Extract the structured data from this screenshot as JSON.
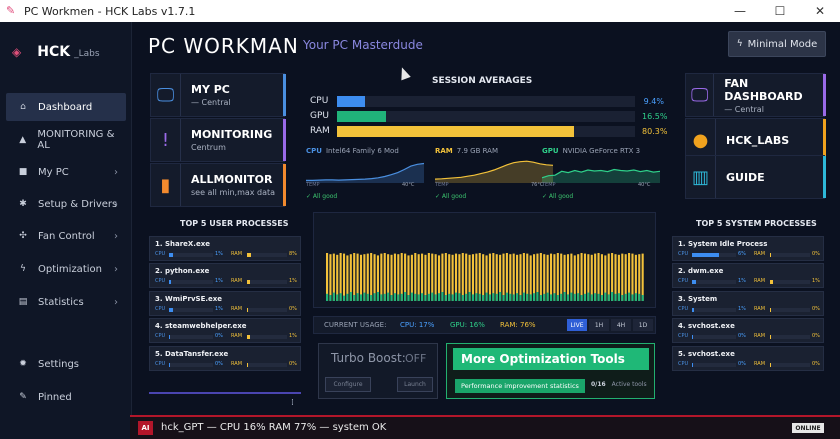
{
  "window": {
    "title": "PC Workmen - HCK Labs v1.7.1",
    "minimize": "—",
    "maximize": "☐",
    "close": "✕"
  },
  "sidebar": {
    "logo_main": "HCK",
    "logo_sub": "_Labs",
    "items": [
      {
        "label": "Dashboard",
        "icon": "home-icon",
        "glyph": "⌂",
        "active": true
      },
      {
        "label": "MONITORING & AL",
        "icon": "warning-icon",
        "glyph": "▲"
      },
      {
        "label": "My PC",
        "icon": "pc-icon",
        "glyph": "■",
        "chevron": "›"
      },
      {
        "label": "Setup & Drivers",
        "icon": "gear-icon",
        "glyph": "✱",
        "chevron": "›"
      },
      {
        "label": "Fan Control",
        "icon": "fan-icon",
        "glyph": "✣",
        "chevron": "›"
      },
      {
        "label": "Optimization",
        "icon": "bolt-icon",
        "glyph": "ϟ",
        "chevron": "›"
      },
      {
        "label": "Statistics",
        "icon": "stats-icon",
        "glyph": "▤",
        "chevron": "›"
      },
      {
        "label": "Settings",
        "icon": "settings-icon",
        "glyph": "✹"
      },
      {
        "label": "Pinned",
        "icon": "pin-icon",
        "glyph": "✎"
      }
    ]
  },
  "header": {
    "brand": "PC WORKMAN",
    "tagline": "Your PC Masterdude",
    "minimal_mode": "Minimal Mode"
  },
  "tiles_left": [
    {
      "title": "MY PC",
      "sub": "— Central",
      "icon": "monitor-icon",
      "glyph": "🖵",
      "color": "#4a8fe0"
    },
    {
      "title": "MONITORING",
      "sub": "Centrum",
      "icon": "alert-icon",
      "glyph": "!",
      "color": "#9a6ae8"
    },
    {
      "title": "ALLMONITOR",
      "sub": "see all min,max data",
      "icon": "bars-icon",
      "glyph": "▮",
      "color": "#f28a2e"
    }
  ],
  "tiles_right": [
    {
      "title": "FAN DASHBOARD",
      "sub": "— Central",
      "icon": "monitor-icon",
      "glyph": "🖵",
      "color": "#9a6ae8"
    },
    {
      "title": "HCK_LABS",
      "sub": "",
      "icon": "circle-icon",
      "glyph": "●",
      "color": "#f0a21e"
    },
    {
      "title": "GUIDE",
      "sub": "",
      "icon": "book-icon",
      "glyph": "▥",
      "color": "#2eb8d8"
    }
  ],
  "session": {
    "title": "SESSION AVERAGES",
    "rows": [
      {
        "label": "CPU",
        "value": 9.4,
        "text": "9.4%",
        "color": "#3d8df0",
        "text_color": "#4aa0ff"
      },
      {
        "label": "GPU",
        "value": 16.5,
        "text": "16.5%",
        "color": "#20b37a",
        "text_color": "#2fd08a"
      },
      {
        "label": "RAM",
        "value": 80.3,
        "text": "80.3%",
        "color": "#f3c23a",
        "text_color": "#f3c23a"
      }
    ]
  },
  "mini_charts": [
    {
      "label": "CPU",
      "model": "Intel64 Family 6 Mod",
      "color": "#4a8fe0",
      "temp_label": "TEMP",
      "temp": "40°C",
      "status": "✓ All good",
      "values": [
        10,
        10,
        11,
        12,
        12,
        11,
        12,
        13,
        14,
        15,
        17,
        20,
        25,
        32,
        40,
        52,
        65,
        72,
        75
      ]
    },
    {
      "label": "RAM",
      "model": "7.9 GB RAM",
      "color": "#f3c23a",
      "temp_label": "TEMP",
      "temp": "76°C",
      "status": "✓ All good",
      "values": [
        15,
        16,
        18,
        20,
        22,
        26,
        30,
        36,
        42,
        50,
        60,
        70,
        78,
        82,
        84,
        80,
        74,
        70,
        68
      ]
    },
    {
      "label": "GPU",
      "model": "NVIDIA GeForce RTX 3",
      "color": "#2fd08a",
      "temp_label": "TEMP",
      "temp": "40°C",
      "status": "✓ All good",
      "values": [
        20,
        28,
        30,
        45,
        40,
        48,
        42,
        50,
        46,
        48,
        44,
        52,
        48,
        46,
        50,
        44,
        48,
        42,
        45
      ]
    }
  ],
  "user_processes": {
    "title": "TOP 5 USER PROCESSES",
    "items": [
      {
        "name": "1. ShareX.exe",
        "cpu": 0.1,
        "cpu_text": "1%",
        "ram": 0.1,
        "ram_text": "8%"
      },
      {
        "name": "2. python.exe",
        "cpu": 0.05,
        "cpu_text": "1%",
        "ram": 0.08,
        "ram_text": "1%"
      },
      {
        "name": "3. WmiPrvSE.exe",
        "cpu": 0.08,
        "cpu_text": "1%",
        "ram": 0.02,
        "ram_text": "0%"
      },
      {
        "name": "4. steamwebhelper.exe",
        "cpu": 0.02,
        "cpu_text": "0%",
        "ram": 0.08,
        "ram_text": "1%"
      },
      {
        "name": "5. DataTansfer.exe",
        "cpu": 0.02,
        "cpu_text": "0%",
        "ram": 0.02,
        "ram_text": "0%"
      }
    ],
    "cpu_label": "CPU",
    "ram_label": "RAM"
  },
  "system_processes": {
    "title": "TOP 5 SYSTEM PROCESSES",
    "items": [
      {
        "name": "1. System Idle Process",
        "cpu": 0.62,
        "cpu_text": "6%",
        "ram": 0.02,
        "ram_text": "0%"
      },
      {
        "name": "2. dwm.exe",
        "cpu": 0.08,
        "cpu_text": "1%",
        "ram": 0.08,
        "ram_text": "1%"
      },
      {
        "name": "3. System",
        "cpu": 0.04,
        "cpu_text": "1%",
        "ram": 0.02,
        "ram_text": "0%"
      },
      {
        "name": "4. svchost.exe",
        "cpu": 0.02,
        "cpu_text": "0%",
        "ram": 0.02,
        "ram_text": "0%"
      },
      {
        "name": "5. svchost.exe",
        "cpu": 0.02,
        "cpu_text": "0%",
        "ram": 0.02,
        "ram_text": "0%"
      }
    ],
    "cpu_label": "CPU",
    "ram_label": "RAM"
  },
  "usage": {
    "label": "CURRENT USAGE:",
    "cpu": "CPU: 17%",
    "gpu": "GPU: 16%",
    "ram": "RAM: 76%",
    "ranges": [
      "LIVE",
      "1H",
      "4H",
      "1D"
    ],
    "active_range": "LIVE"
  },
  "turbo": {
    "label": "Turbo Boost:",
    "state": "OFF",
    "configure": "Configure",
    "launch": "Launch"
  },
  "optimization": {
    "title": "More Optimization Tools",
    "stats_button": "Performance improvement statistics",
    "count": "0/16",
    "active_label": "Active tools"
  },
  "footer": {
    "ai_badge": "AI",
    "status": "hck_GPT — CPU 16% RAM 77% — system OK",
    "online": "ONLINE"
  },
  "chart_data": {
    "type": "bar",
    "title": "",
    "series": [
      {
        "color": "#f3c23a",
        "values": [
          80,
          78,
          79,
          77,
          80,
          79,
          76,
          78,
          80,
          79,
          77,
          78,
          79,
          80,
          78,
          76,
          79,
          80,
          78,
          77,
          79,
          78,
          80,
          79,
          76,
          77,
          80,
          78,
          79,
          77,
          80,
          79,
          78,
          76,
          79,
          80,
          78,
          77,
          79,
          78,
          80,
          79,
          77,
          78,
          79,
          80,
          78,
          76,
          79,
          80,
          78,
          77,
          79,
          80,
          78,
          79,
          77,
          78,
          80,
          79,
          76,
          78,
          79,
          80,
          78,
          77,
          79,
          78,
          80,
          79,
          77,
          78,
          79,
          76,
          78,
          80,
          79,
          78,
          77,
          79,
          80,
          78,
          76,
          79,
          80,
          78,
          77,
          79,
          78,
          80,
          79,
          77,
          78,
          79
        ]
      },
      {
        "color": "#20b37a",
        "values": [
          12,
          10,
          14,
          11,
          13,
          9,
          12,
          15,
          10,
          13,
          11,
          14,
          12,
          10,
          13,
          15,
          11,
          12,
          14,
          10,
          13,
          11,
          12,
          15,
          10,
          14,
          12,
          11,
          13,
          10,
          12,
          14,
          11,
          13,
          15,
          10,
          12,
          11,
          14,
          13,
          10,
          12,
          15,
          11,
          13,
          12,
          10,
          14,
          11,
          13,
          12,
          15,
          10,
          14,
          12,
          11,
          13,
          10,
          14,
          12,
          11,
          13,
          15,
          10,
          12,
          14,
          11,
          13,
          10,
          12,
          15,
          11,
          14,
          12,
          13,
          10,
          12,
          14,
          11,
          13,
          12,
          10,
          14,
          11,
          15,
          12,
          13,
          10,
          12,
          14,
          11,
          13,
          12,
          10
        ]
      }
    ],
    "ylim": [
      0,
      100
    ]
  }
}
